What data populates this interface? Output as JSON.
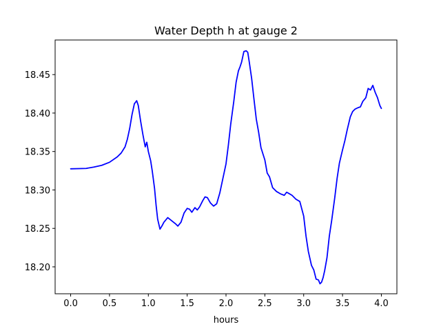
{
  "chart_data": {
    "type": "line",
    "title": "Water Depth h at gauge 2",
    "xlabel": "hours",
    "ylabel": "",
    "xlim": [
      -0.2,
      4.2
    ],
    "ylim": [
      18.165,
      18.495
    ],
    "xticks": [
      0.0,
      0.5,
      1.0,
      1.5,
      2.0,
      2.5,
      3.0,
      3.5,
      4.0
    ],
    "xtick_labels": [
      "0.0",
      "0.5",
      "1.0",
      "1.5",
      "2.0",
      "2.5",
      "3.0",
      "3.5",
      "4.0"
    ],
    "yticks": [
      18.2,
      18.25,
      18.3,
      18.35,
      18.4,
      18.45
    ],
    "ytick_labels": [
      "18.20",
      "18.25",
      "18.30",
      "18.35",
      "18.40",
      "18.45"
    ],
    "grid": false,
    "legend": "none",
    "series": [
      {
        "color": "#0000ff",
        "x": [
          0.0,
          0.2,
          0.3,
          0.4,
          0.5,
          0.6,
          0.65,
          0.7,
          0.73,
          0.76,
          0.79,
          0.82,
          0.85,
          0.87,
          0.9,
          0.93,
          0.96,
          0.98,
          1.0,
          1.03,
          1.05,
          1.08,
          1.1,
          1.12,
          1.15,
          1.18,
          1.2,
          1.25,
          1.3,
          1.35,
          1.38,
          1.42,
          1.46,
          1.5,
          1.53,
          1.56,
          1.6,
          1.63,
          1.66,
          1.7,
          1.73,
          1.76,
          1.8,
          1.84,
          1.88,
          1.92,
          1.96,
          2.0,
          2.03,
          2.06,
          2.1,
          2.13,
          2.16,
          2.18,
          2.2,
          2.23,
          2.26,
          2.28,
          2.3,
          2.33,
          2.36,
          2.39,
          2.42,
          2.45,
          2.5,
          2.53,
          2.56,
          2.6,
          2.65,
          2.7,
          2.75,
          2.78,
          2.8,
          2.85,
          2.9,
          2.95,
          3.0,
          3.03,
          3.06,
          3.1,
          3.13,
          3.16,
          3.19,
          3.21,
          3.23,
          3.25,
          3.27,
          3.3,
          3.33,
          3.36,
          3.4,
          3.43,
          3.46,
          3.5,
          3.53,
          3.56,
          3.6,
          3.63,
          3.66,
          3.7,
          3.73,
          3.76,
          3.8,
          3.83,
          3.86,
          3.89,
          3.92,
          3.95,
          3.98,
          4.0
        ],
        "y": [
          18.3275,
          18.328,
          18.3298,
          18.332,
          18.336,
          18.343,
          18.348,
          18.356,
          18.366,
          18.38,
          18.398,
          18.412,
          18.416,
          18.41,
          18.39,
          18.372,
          18.356,
          18.362,
          18.35,
          18.338,
          18.325,
          18.302,
          18.28,
          18.262,
          18.249,
          18.254,
          18.258,
          18.264,
          18.26,
          18.256,
          18.253,
          18.258,
          18.27,
          18.276,
          18.275,
          18.271,
          18.277,
          18.274,
          18.278,
          18.286,
          18.291,
          18.29,
          18.283,
          18.279,
          18.282,
          18.296,
          18.315,
          18.334,
          18.358,
          18.385,
          18.415,
          18.44,
          18.455,
          18.46,
          18.466,
          18.48,
          18.481,
          18.479,
          18.466,
          18.445,
          18.418,
          18.392,
          18.375,
          18.355,
          18.339,
          18.322,
          18.317,
          18.303,
          18.298,
          18.295,
          18.293,
          18.297,
          18.296,
          18.293,
          18.288,
          18.285,
          18.266,
          18.24,
          18.22,
          18.202,
          18.196,
          18.184,
          18.183,
          18.178,
          18.18,
          18.186,
          18.195,
          18.212,
          18.24,
          18.26,
          18.29,
          18.315,
          18.335,
          18.352,
          18.364,
          18.378,
          18.395,
          18.402,
          18.405,
          18.407,
          18.408,
          18.415,
          18.42,
          18.432,
          18.43,
          18.436,
          18.427,
          18.42,
          18.41,
          18.406
        ]
      }
    ]
  }
}
